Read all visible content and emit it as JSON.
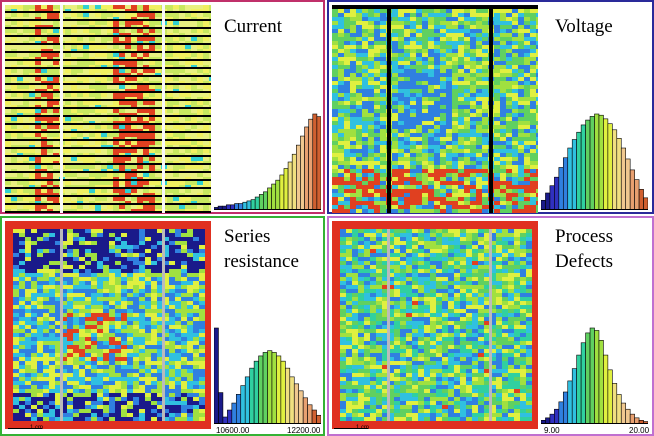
{
  "panels": [
    {
      "id": "current",
      "title": "Current",
      "border": "#c0306a",
      "hist_values": [
        2,
        3,
        3,
        4,
        4,
        5,
        5,
        6,
        7,
        8,
        10,
        12,
        14,
        17,
        20,
        23,
        27,
        32,
        37,
        43,
        50,
        57,
        64,
        70,
        74,
        72
      ],
      "scheme": "current",
      "xmin": "",
      "xmax": "",
      "scale_label": ""
    },
    {
      "id": "voltage",
      "title": "Voltage",
      "border": "#2a2a9a",
      "hist_values": [
        8,
        14,
        20,
        27,
        35,
        43,
        51,
        58,
        64,
        70,
        74,
        77,
        79,
        78,
        75,
        71,
        66,
        59,
        51,
        42,
        33,
        25,
        17,
        10
      ],
      "scheme": "voltage",
      "xmin": "",
      "xmax": "",
      "scale_label": ""
    },
    {
      "id": "series-resistance",
      "title": "Series\nresistance",
      "border": "#34b234",
      "hist_values": [
        55,
        18,
        4,
        8,
        12,
        17,
        22,
        27,
        32,
        36,
        39,
        41,
        42,
        41,
        39,
        36,
        32,
        27,
        23,
        19,
        15,
        11,
        8,
        5
      ],
      "scheme": "series",
      "xmin": "10600.00",
      "xmax": "12200.00",
      "scale_label": "1 cm"
    },
    {
      "id": "process-defects",
      "title": "Process\nDefects",
      "border": "#c070d0",
      "hist_values": [
        3,
        5,
        8,
        12,
        18,
        26,
        35,
        45,
        56,
        66,
        74,
        78,
        76,
        68,
        56,
        44,
        33,
        24,
        17,
        12,
        8,
        5,
        3,
        2
      ],
      "scheme": "defects",
      "xmin": "9.00",
      "xmax": "20.00",
      "scale_label": "1 cm"
    }
  ],
  "colors": {
    "spectrum": [
      "#1a1a8a",
      "#3030c0",
      "#3080e0",
      "#30c0e0",
      "#30d0a0",
      "#60d060",
      "#a0e040",
      "#e0f040",
      "#f0e080",
      "#f0c890",
      "#e8a070",
      "#d06030"
    ]
  }
}
